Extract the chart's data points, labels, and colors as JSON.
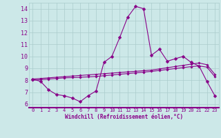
{
  "xlabel": "Windchill (Refroidissement éolien,°C)",
  "xlim": [
    -0.5,
    23.5
  ],
  "ylim": [
    5.7,
    14.5
  ],
  "xticks": [
    0,
    1,
    2,
    3,
    4,
    5,
    6,
    7,
    8,
    9,
    10,
    11,
    12,
    13,
    14,
    15,
    16,
    17,
    18,
    19,
    20,
    21,
    22,
    23
  ],
  "yticks": [
    6,
    7,
    8,
    9,
    10,
    11,
    12,
    13,
    14
  ],
  "color": "#880088",
  "bg_color": "#cce8e8",
  "main_line_x": [
    0,
    1,
    2,
    3,
    4,
    5,
    6,
    7,
    8,
    9,
    10,
    11,
    12,
    13,
    14,
    15,
    16,
    17,
    18,
    19,
    20,
    21,
    22,
    23
  ],
  "main_line_y": [
    8.1,
    7.9,
    7.2,
    6.8,
    6.7,
    6.5,
    6.2,
    6.7,
    7.1,
    9.5,
    10.0,
    11.6,
    13.3,
    14.2,
    14.0,
    10.1,
    10.6,
    9.6,
    9.8,
    10.0,
    9.5,
    9.2,
    7.9,
    6.7
  ],
  "line2_x": [
    0,
    1,
    2,
    3,
    4,
    5,
    6,
    7,
    8,
    9,
    10,
    11,
    12,
    13,
    14,
    15,
    16,
    17,
    18,
    19,
    20,
    21,
    22,
    23
  ],
  "line2_y": [
    8.1,
    8.15,
    8.2,
    8.25,
    8.3,
    8.35,
    8.4,
    8.45,
    8.5,
    8.55,
    8.6,
    8.65,
    8.7,
    8.75,
    8.8,
    8.85,
    8.95,
    9.05,
    9.15,
    9.25,
    9.35,
    9.45,
    9.3,
    8.5
  ],
  "line3_x": [
    0,
    1,
    2,
    3,
    4,
    5,
    6,
    7,
    8,
    9,
    10,
    11,
    12,
    13,
    14,
    15,
    16,
    17,
    18,
    19,
    20,
    21,
    22,
    23
  ],
  "line3_y": [
    8.0,
    8.05,
    8.1,
    8.15,
    8.2,
    8.22,
    8.25,
    8.28,
    8.32,
    8.38,
    8.44,
    8.5,
    8.56,
    8.62,
    8.68,
    8.74,
    8.82,
    8.9,
    8.98,
    9.06,
    9.14,
    9.2,
    9.1,
    8.3
  ],
  "grid_color": "#aacccc",
  "tick_fontsize": 5,
  "xlabel_fontsize": 5.5,
  "marker_size": 2.5,
  "line_width": 0.8
}
